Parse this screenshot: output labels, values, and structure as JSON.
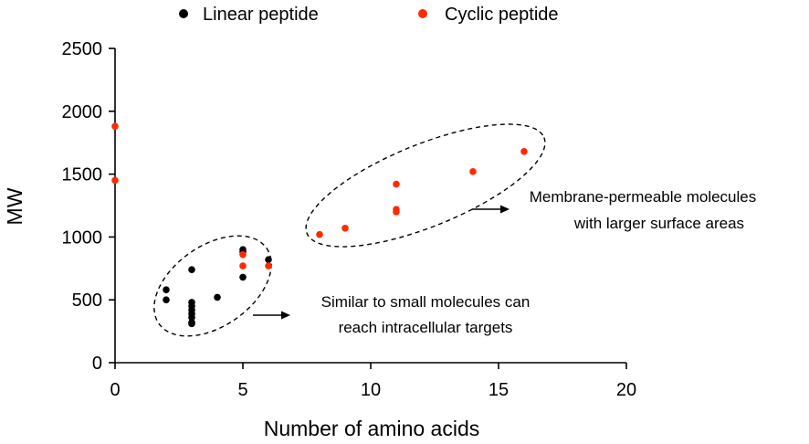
{
  "chart_data": {
    "type": "scatter",
    "title": "",
    "xlabel": "Number of amino acids",
    "ylabel": "MW",
    "xlim": [
      0,
      20
    ],
    "ylim": [
      0,
      2500
    ],
    "xticks": [
      0,
      5,
      10,
      15,
      20
    ],
    "yticks": [
      0,
      500,
      1000,
      1500,
      2000,
      2500
    ],
    "grid": false,
    "legend_position": "top",
    "series": [
      {
        "name": "Linear peptide",
        "color": "#000000",
        "points": [
          [
            2,
            580
          ],
          [
            2,
            500
          ],
          [
            3,
            740
          ],
          [
            3,
            480
          ],
          [
            3,
            450
          ],
          [
            3,
            420
          ],
          [
            3,
            390
          ],
          [
            3,
            360
          ],
          [
            3,
            320
          ],
          [
            3,
            310
          ],
          [
            4,
            520
          ],
          [
            5,
            900
          ],
          [
            5,
            880
          ],
          [
            5,
            680
          ],
          [
            6,
            820
          ]
        ]
      },
      {
        "name": "Cyclic peptide",
        "color": "#ff2a00",
        "points": [
          [
            0,
            1880
          ],
          [
            0,
            1450
          ],
          [
            5,
            860
          ],
          [
            5,
            770
          ],
          [
            6,
            770
          ],
          [
            8,
            1020
          ],
          [
            9,
            1070
          ],
          [
            11,
            1420
          ],
          [
            11,
            1220
          ],
          [
            11,
            1200
          ],
          [
            14,
            1520
          ],
          [
            16,
            1680
          ]
        ]
      }
    ],
    "annotations": [
      {
        "name": "annotation-small-molecules",
        "lines": [
          "Similar to small molecules can",
          "reach intracellular targets"
        ]
      },
      {
        "name": "annotation-membrane-permeable",
        "lines": [
          "Membrane-permeable molecules",
          "with larger surface areas"
        ]
      }
    ]
  }
}
